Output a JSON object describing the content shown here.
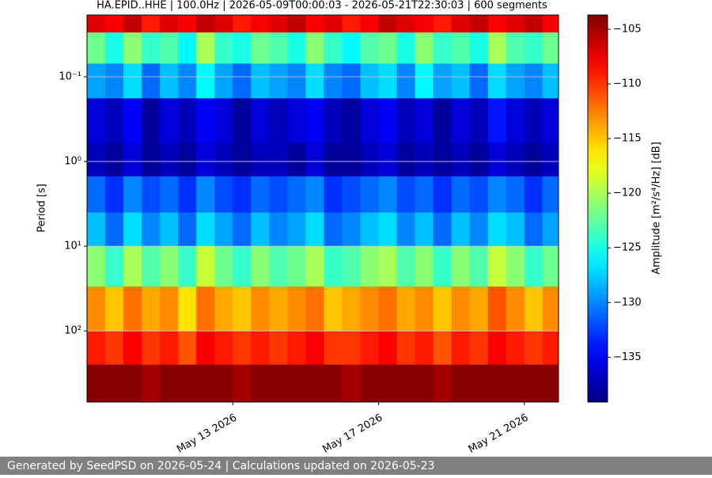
{
  "chart_data": {
    "type": "heatmap",
    "title": "HA.EPID..HHE | 100.0Hz | 2026-05-09T00:00:03 - 2026-05-21T22:30:03 | 600 segments",
    "y_label": "Period [s]",
    "colorbar_label": "Amplitude [m²/s⁴/Hz] [dB]",
    "footer": "Generated by SeedPSD on 2026-05-24 | Calculations updated on 2026-05-23",
    "colormap": "jet",
    "y_log": true,
    "y_inverted": true,
    "grid": true,
    "xlim": [
      "2026-05-09T00:00:03",
      "2026-05-21T22:30:03"
    ],
    "xticks": [
      {
        "value": "2026-05-13",
        "label": "May 13 2026"
      },
      {
        "value": "2026-05-17",
        "label": "May 17 2026"
      },
      {
        "value": "2026-05-21",
        "label": "May 21 2026"
      }
    ],
    "ylim": [
      0.0187,
      690
    ],
    "yticks": [
      {
        "value": 0.1,
        "label": "10⁻¹"
      },
      {
        "value": 1,
        "label": "10⁰"
      },
      {
        "value": 10,
        "label": "10¹"
      },
      {
        "value": 100,
        "label": "10²"
      }
    ],
    "clim": [
      -139.1,
      -103.7
    ],
    "cticks": [
      {
        "value": -105,
        "label": "−105"
      },
      {
        "value": -110,
        "label": "−110"
      },
      {
        "value": -115,
        "label": "−115"
      },
      {
        "value": -120,
        "label": "−120"
      },
      {
        "value": -125,
        "label": "−125"
      },
      {
        "value": -130,
        "label": "−130"
      },
      {
        "value": -135,
        "label": "−135"
      }
    ],
    "x_edges": [
      "2026-05-09T00:00:03",
      "2026-05-09T12:00",
      "2026-05-10T00:00",
      "2026-05-10T12:00",
      "2026-05-11T00:00",
      "2026-05-11T12:00",
      "2026-05-12T00:00",
      "2026-05-12T12:00",
      "2026-05-13T00:00",
      "2026-05-13T12:00",
      "2026-05-14T00:00",
      "2026-05-14T12:00",
      "2026-05-15T00:00",
      "2026-05-15T12:00",
      "2026-05-16T00:00",
      "2026-05-16T12:00",
      "2026-05-17T00:00",
      "2026-05-17T12:00",
      "2026-05-18T00:00",
      "2026-05-18T12:00",
      "2026-05-19T00:00",
      "2026-05-19T12:00",
      "2026-05-20T00:00",
      "2026-05-20T12:00",
      "2026-05-21T00:00",
      "2026-05-21T12:00",
      "2026-05-21T22:30:03"
    ],
    "y_edges": [
      0.0187,
      0.03,
      0.07,
      0.18,
      0.6,
      1.5,
      4,
      10,
      30,
      100,
      250,
      690
    ],
    "z": [
      [
        -107,
        -108,
        -106,
        -109,
        -107,
        -108,
        -106,
        -107,
        -109,
        -108,
        -107,
        -106,
        -108,
        -107,
        -109,
        -108,
        -106,
        -107,
        -108,
        -109,
        -107,
        -106,
        -108,
        -107,
        -106,
        -108
      ],
      [
        -122,
        -125,
        -121,
        -124,
        -123,
        -126,
        -120,
        -124,
        -125,
        -122,
        -123,
        -125,
        -121,
        -124,
        -126,
        -123,
        -122,
        -125,
        -121,
        -124,
        -123,
        -125,
        -120,
        -123,
        -124,
        -122
      ],
      [
        -129,
        -130,
        -127,
        -131,
        -128,
        -130,
        -126,
        -129,
        -131,
        -128,
        -129,
        -130,
        -127,
        -130,
        -131,
        -128,
        -127,
        -130,
        -126,
        -129,
        -128,
        -131,
        -127,
        -129,
        -130,
        -128
      ],
      [
        -136,
        -137,
        -135,
        -138,
        -136,
        -137,
        -135,
        -136,
        -138,
        -136,
        -137,
        -136,
        -135,
        -137,
        -138,
        -136,
        -135,
        -137,
        -136,
        -138,
        -136,
        -137,
        -134,
        -136,
        -137,
        -136
      ],
      [
        -137,
        -138,
        -136,
        -138,
        -137,
        -138,
        -136,
        -137,
        -138,
        -137,
        -137,
        -138,
        -136,
        -138,
        -138,
        -137,
        -136,
        -138,
        -137,
        -138,
        -137,
        -138,
        -136,
        -137,
        -138,
        -137
      ],
      [
        -131,
        -133,
        -130,
        -132,
        -131,
        -133,
        -130,
        -132,
        -133,
        -131,
        -132,
        -131,
        -130,
        -133,
        -132,
        -131,
        -130,
        -132,
        -131,
        -133,
        -131,
        -132,
        -130,
        -131,
        -133,
        -131
      ],
      [
        -128,
        -131,
        -127,
        -130,
        -128,
        -131,
        -127,
        -129,
        -131,
        -128,
        -130,
        -129,
        -127,
        -131,
        -130,
        -128,
        -127,
        -130,
        -128,
        -131,
        -128,
        -130,
        -127,
        -128,
        -131,
        -129
      ],
      [
        -121,
        -124,
        -120,
        -123,
        -121,
        -124,
        -119,
        -122,
        -124,
        -121,
        -123,
        -122,
        -120,
        -124,
        -123,
        -121,
        -120,
        -123,
        -121,
        -124,
        -121,
        -123,
        -119,
        -121,
        -124,
        -122
      ],
      [
        -113,
        -115,
        -112,
        -114,
        -113,
        -116,
        -112,
        -114,
        -115,
        -113,
        -114,
        -113,
        -112,
        -115,
        -114,
        -113,
        -112,
        -114,
        -113,
        -115,
        -113,
        -114,
        -111,
        -113,
        -115,
        -113
      ],
      [
        -109,
        -110,
        -108,
        -110,
        -109,
        -111,
        -108,
        -109,
        -110,
        -109,
        -110,
        -109,
        -108,
        -110,
        -110,
        -109,
        -108,
        -110,
        -109,
        -111,
        -109,
        -110,
        -108,
        -109,
        -110,
        -109
      ],
      [
        -104,
        -104,
        -104,
        -105,
        -104,
        -104,
        -104,
        -104,
        -105,
        -104,
        -104,
        -104,
        -104,
        -104,
        -105,
        -104,
        -104,
        -104,
        -104,
        -105,
        -104,
        -104,
        -104,
        -104,
        -104,
        -104
      ]
    ]
  }
}
